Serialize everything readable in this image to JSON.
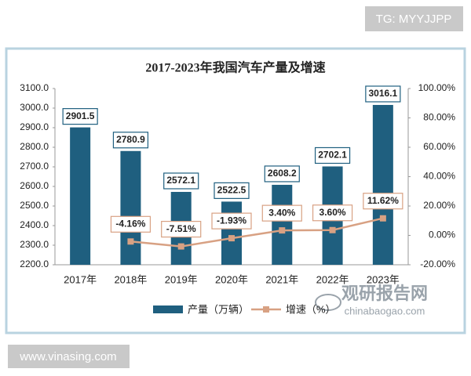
{
  "watermarks": {
    "top": "TG: MYYJJPP",
    "bottom": "www.vinasing.com",
    "brand": "观研报告网",
    "brand_url": "chinabaogao.com"
  },
  "chart_data": {
    "type": "bar_line",
    "title": "2017-2023年我国汽车产量及增速",
    "categories": [
      "2017年",
      "2018年",
      "2019年",
      "2020年",
      "2021年",
      "2022年",
      "2023年"
    ],
    "series": [
      {
        "name": "产量（万辆）",
        "type": "bar",
        "color": "#1f5f7f",
        "values": [
          2901.5,
          2780.9,
          2572.1,
          2522.5,
          2608.2,
          2702.1,
          3016.1
        ]
      },
      {
        "name": "增速（%）",
        "type": "line",
        "axis": "y2",
        "color": "#d8a183",
        "values": [
          null,
          -4.16,
          -7.51,
          -1.93,
          3.4,
          3.6,
          11.62
        ],
        "value_labels": [
          null,
          "-4.16%",
          "-7.51%",
          "-1.93%",
          "3.40%",
          "3.60%",
          "11.62%"
        ]
      }
    ],
    "ylim": [
      2200,
      3100
    ],
    "yticks": [
      {
        "value": 2200,
        "label": "2200.0"
      },
      {
        "value": 2300,
        "label": "2300.0"
      },
      {
        "value": 2400,
        "label": "2400.0"
      },
      {
        "value": 2500,
        "label": "2500.0"
      },
      {
        "value": 2600,
        "label": "2600.0"
      },
      {
        "value": 2700,
        "label": "2700.0"
      },
      {
        "value": 2800,
        "label": "2800.0"
      },
      {
        "value": 2900,
        "label": "2900.0"
      },
      {
        "value": 3000,
        "label": "3000.0"
      },
      {
        "value": 3100,
        "label": "3100.0"
      }
    ],
    "y2lim": [
      -20,
      100
    ],
    "y2ticks": [
      {
        "value": -20,
        "label": "-20.00%"
      },
      {
        "value": 0,
        "label": "0.00%"
      },
      {
        "value": 20,
        "label": "20.00%"
      },
      {
        "value": 40,
        "label": "40.00%"
      },
      {
        "value": 60,
        "label": "60.00%"
      },
      {
        "value": 80,
        "label": "80.00%"
      },
      {
        "value": 100,
        "label": "100.00%"
      }
    ],
    "grid": false,
    "legend": "bottom"
  }
}
